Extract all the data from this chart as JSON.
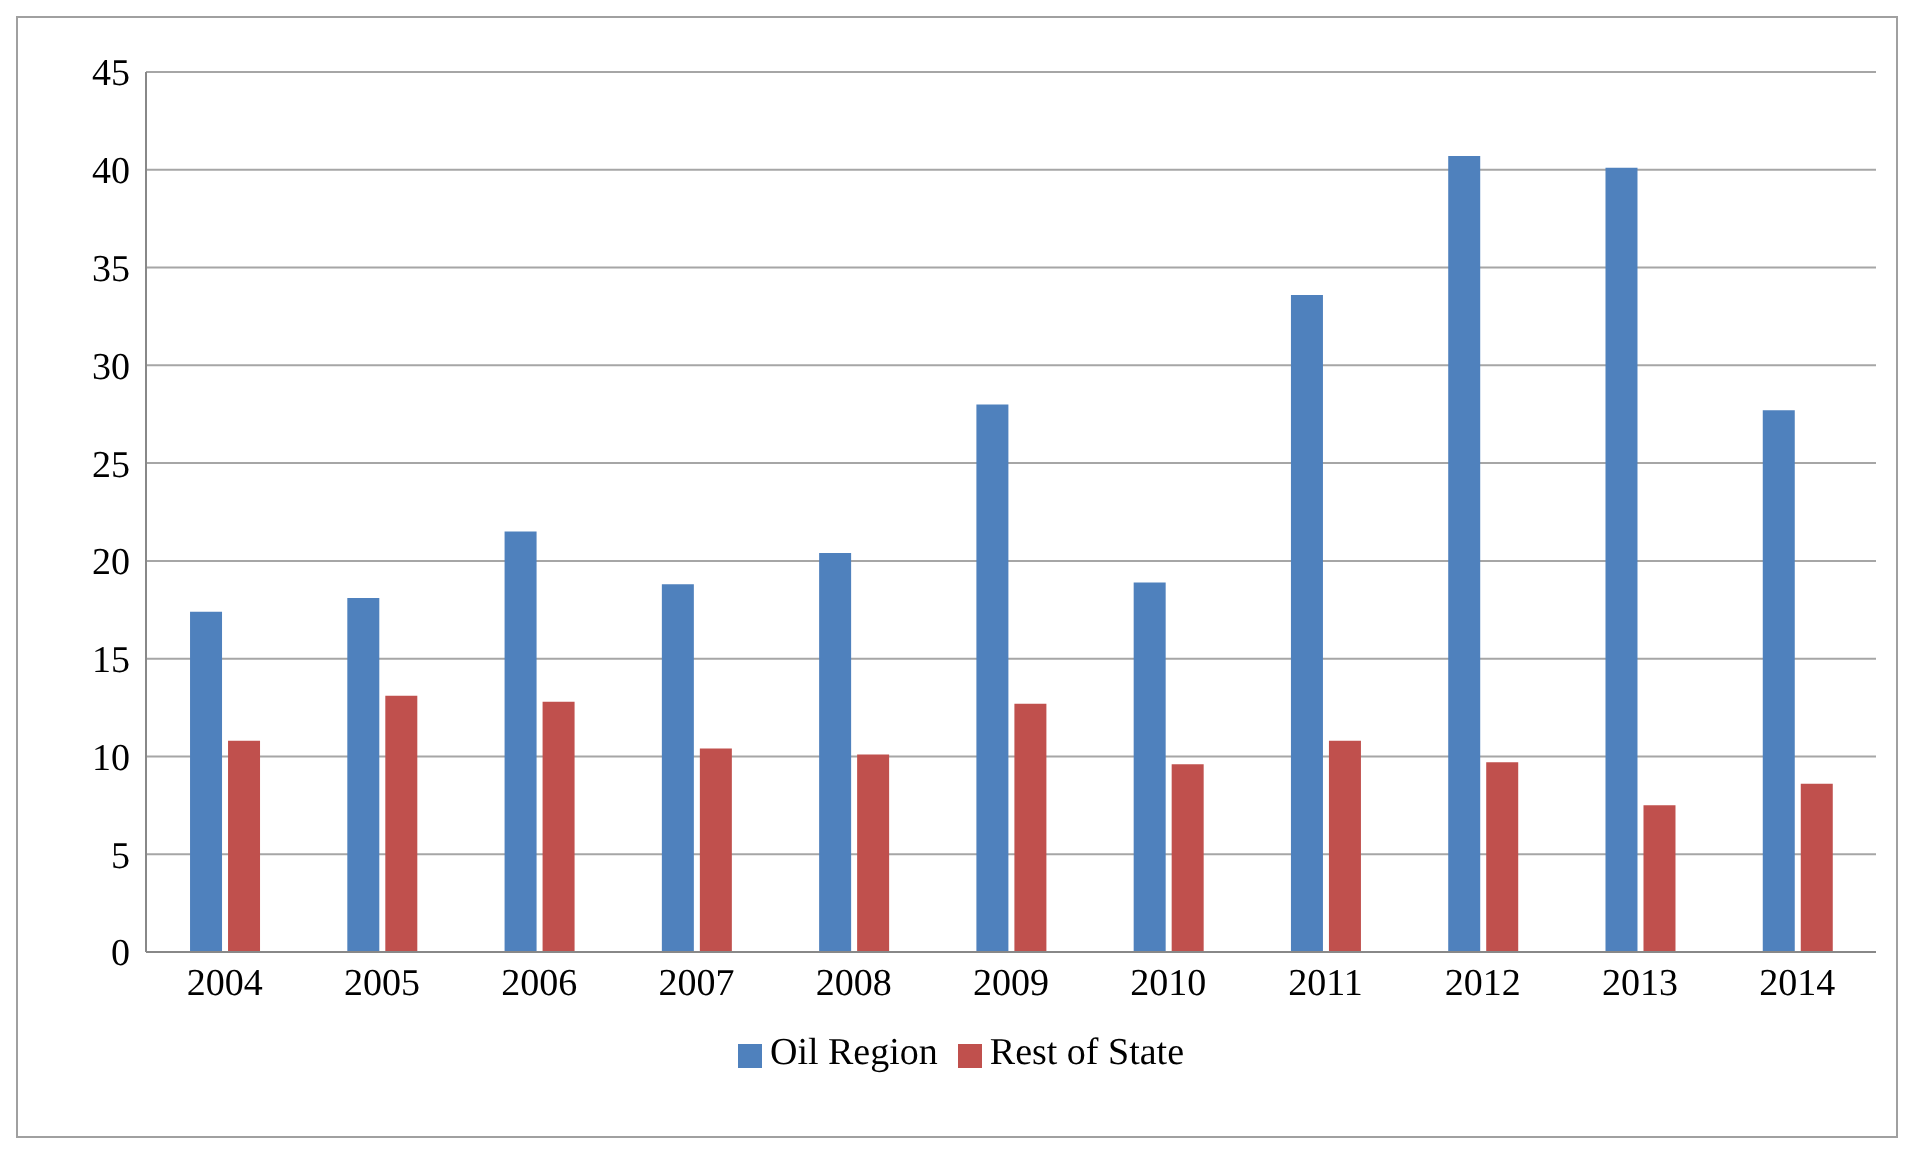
{
  "chart_data": {
    "type": "bar",
    "categories": [
      "2004",
      "2005",
      "2006",
      "2007",
      "2008",
      "2009",
      "2010",
      "2011",
      "2012",
      "2013",
      "2014"
    ],
    "series": [
      {
        "name": "Oil Region",
        "color": "#4f81bd",
        "values": [
          17.4,
          18.1,
          21.5,
          18.8,
          20.4,
          28.0,
          18.9,
          33.6,
          40.7,
          40.1,
          27.7
        ]
      },
      {
        "name": "Rest of State",
        "color": "#c0504d",
        "values": [
          10.8,
          13.1,
          12.8,
          10.4,
          10.1,
          12.7,
          9.6,
          10.8,
          9.7,
          7.5,
          8.6
        ]
      }
    ],
    "ylim": [
      0,
      45
    ],
    "yticks": [
      0,
      5,
      10,
      15,
      20,
      25,
      30,
      35,
      40,
      45
    ],
    "grid": "y",
    "legend": "bottom"
  }
}
